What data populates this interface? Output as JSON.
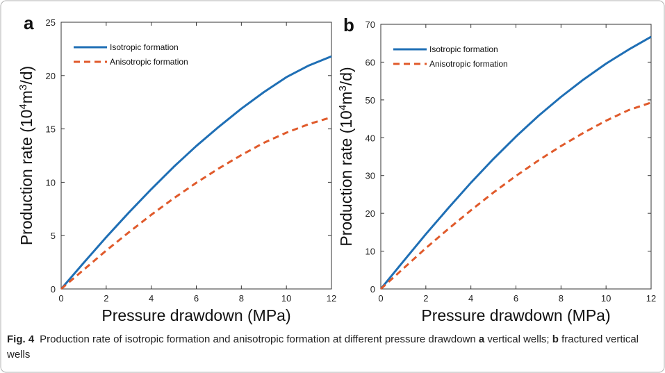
{
  "colors": {
    "isotropic": "#1f6fb5",
    "anisotropic": "#e05a2b",
    "frame": "#8a8a8a",
    "axis": "#333333"
  },
  "chart_data": [
    {
      "type": "line",
      "panel": "a",
      "xlabel": "Pressure drawdown (MPa)",
      "ylabel_prefix": "Production rate (10",
      "ylabel_sup1": "4",
      "ylabel_mid": "m",
      "ylabel_sup2": "3",
      "ylabel_suffix": "/d)",
      "xlim": [
        0,
        12
      ],
      "ylim": [
        0,
        25
      ],
      "xticks": [
        0,
        2,
        4,
        6,
        8,
        10,
        12
      ],
      "yticks": [
        0,
        5,
        10,
        15,
        20,
        25
      ],
      "grid": false,
      "legend_position": "top-left",
      "x": [
        0,
        1,
        2,
        3,
        4,
        5,
        6,
        7,
        8,
        9,
        10,
        11,
        12
      ],
      "series": [
        {
          "name": "Isotropic formation",
          "style": "solid",
          "values": [
            0,
            2.45,
            4.85,
            7.15,
            9.35,
            11.45,
            13.4,
            15.2,
            16.9,
            18.45,
            19.85,
            20.95,
            21.8
          ]
        },
        {
          "name": "Anisotropic formation",
          "style": "dashed",
          "values": [
            0,
            1.8,
            3.6,
            5.3,
            6.95,
            8.5,
            9.95,
            11.3,
            12.55,
            13.7,
            14.65,
            15.45,
            16.1
          ]
        }
      ]
    },
    {
      "type": "line",
      "panel": "b",
      "xlabel": "Pressure drawdown (MPa)",
      "ylabel_prefix": "Production rate (10",
      "ylabel_sup1": "4",
      "ylabel_mid": "m",
      "ylabel_sup2": "3",
      "ylabel_suffix": "/d)",
      "xlim": [
        0,
        12
      ],
      "ylim": [
        0,
        70
      ],
      "xticks": [
        0,
        2,
        4,
        6,
        8,
        10,
        12
      ],
      "yticks": [
        0,
        10,
        20,
        30,
        40,
        50,
        60,
        70
      ],
      "grid": false,
      "legend_position": "top-left",
      "x": [
        0,
        1,
        2,
        3,
        4,
        5,
        6,
        7,
        8,
        9,
        10,
        11,
        12
      ],
      "series": [
        {
          "name": "Isotropic formation",
          "style": "solid",
          "values": [
            0,
            7.3,
            14.5,
            21.4,
            28.1,
            34.4,
            40.3,
            45.8,
            50.8,
            55.4,
            59.6,
            63.3,
            66.7
          ]
        },
        {
          "name": "Anisotropic formation",
          "style": "dashed",
          "values": [
            0,
            5.4,
            10.8,
            15.9,
            20.8,
            25.5,
            29.9,
            34.0,
            37.8,
            41.3,
            44.5,
            47.3,
            49.3
          ]
        }
      ]
    }
  ],
  "caption": {
    "label": "Fig. 4",
    "text_before_a": "Production rate of isotropic formation and anisotropic formation at different pressure drawdown ",
    "letter_a": "a",
    "text_a": " vertical wells; ",
    "letter_b": "b",
    "text_b": " fractured vertical wells"
  }
}
